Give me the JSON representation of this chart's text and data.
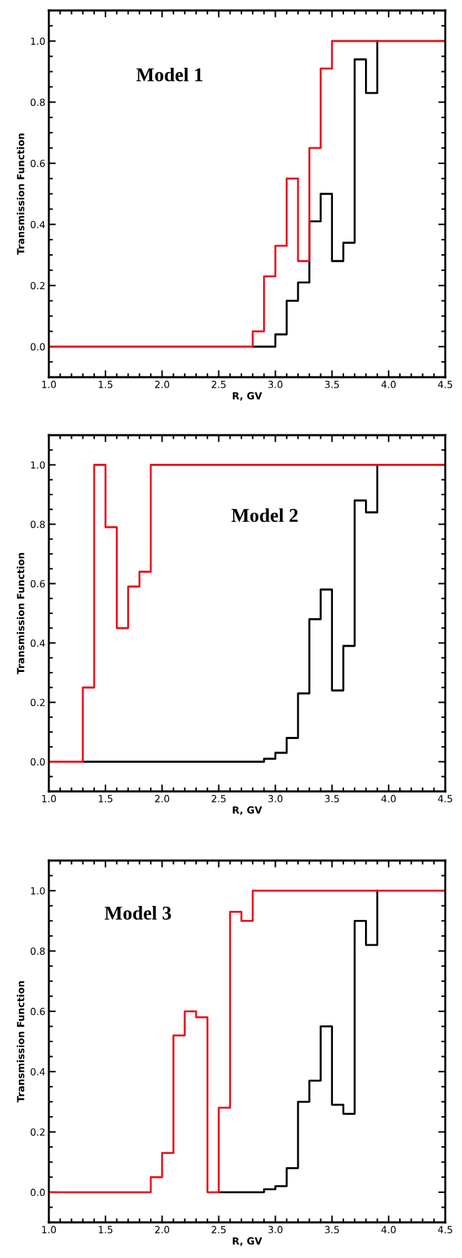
{
  "chart_data": [
    {
      "type": "step",
      "title": "Model 1",
      "xlabel": "R, GV",
      "ylabel": "Transmission Function",
      "xlim": [
        1.0,
        4.5
      ],
      "ylim": [
        -0.1,
        1.1
      ],
      "xticks": [
        {
          "value": 1.0,
          "label": "1.0"
        },
        {
          "value": 1.5,
          "label": "1.5"
        },
        {
          "value": 2.0,
          "label": "2.0"
        },
        {
          "value": 2.5,
          "label": "2.5"
        },
        {
          "value": 3.0,
          "label": "3.0"
        },
        {
          "value": 3.5,
          "label": "3.5"
        },
        {
          "value": 4.0,
          "label": "4.0"
        },
        {
          "value": 4.5,
          "label": "4.5"
        }
      ],
      "yticks": [
        {
          "value": 0.0,
          "label": "0.0"
        },
        {
          "value": 0.2,
          "label": "0.2"
        },
        {
          "value": 0.4,
          "label": "0.4"
        },
        {
          "value": 0.6,
          "label": "0.6"
        },
        {
          "value": 0.8,
          "label": "0.8"
        },
        {
          "value": 1.0,
          "label": "1.0"
        }
      ],
      "grid": false,
      "legend": false,
      "series": [
        {
          "color": "#000000",
          "x": [
            2.8,
            3.0,
            3.1,
            3.2,
            3.3,
            3.4,
            3.5,
            3.6,
            3.7,
            3.8,
            3.9
          ],
          "values": [
            0,
            0.04,
            0.15,
            0.21,
            0.41,
            0.5,
            0.28,
            0.34,
            0.94,
            0.83,
            1.0
          ]
        },
        {
          "color": "#e8141c",
          "x": [
            1.0,
            2.8,
            2.9,
            3.0,
            3.1,
            3.2,
            3.3,
            3.4,
            3.5,
            4.5
          ],
          "values": [
            0,
            0.05,
            0.23,
            0.33,
            0.55,
            0.28,
            0.65,
            0.91,
            1.0,
            1.0
          ]
        }
      ]
    },
    {
      "type": "step",
      "title": "Model 2",
      "xlabel": "R, GV",
      "ylabel": "Transmission Function",
      "xlim": [
        1.0,
        4.5
      ],
      "ylim": [
        -0.1,
        1.1
      ],
      "xticks": [
        {
          "value": 1.0,
          "label": "1.0"
        },
        {
          "value": 1.5,
          "label": "1.5"
        },
        {
          "value": 2.0,
          "label": "2.0"
        },
        {
          "value": 2.5,
          "label": "2.5"
        },
        {
          "value": 3.0,
          "label": "3.0"
        },
        {
          "value": 3.5,
          "label": "3.5"
        },
        {
          "value": 4.0,
          "label": "4.0"
        },
        {
          "value": 4.5,
          "label": "4.5"
        }
      ],
      "yticks": [
        {
          "value": 0.0,
          "label": "0.0"
        },
        {
          "value": 0.2,
          "label": "0.2"
        },
        {
          "value": 0.4,
          "label": "0.4"
        },
        {
          "value": 0.6,
          "label": "0.6"
        },
        {
          "value": 0.8,
          "label": "0.8"
        },
        {
          "value": 1.0,
          "label": "1.0"
        }
      ],
      "grid": false,
      "legend": false,
      "series": [
        {
          "color": "#000000",
          "x": [
            1.3,
            2.9,
            3.0,
            3.1,
            3.2,
            3.3,
            3.4,
            3.5,
            3.6,
            3.7,
            3.8,
            3.9
          ],
          "values": [
            0,
            0.01,
            0.03,
            0.08,
            0.23,
            0.48,
            0.58,
            0.24,
            0.39,
            0.88,
            0.84,
            1.0
          ]
        },
        {
          "color": "#e8141c",
          "x": [
            1.0,
            1.3,
            1.4,
            1.5,
            1.6,
            1.7,
            1.8,
            1.9,
            4.5
          ],
          "values": [
            0,
            0.25,
            1.0,
            0.79,
            0.45,
            0.59,
            0.64,
            1.0,
            1.0
          ]
        }
      ]
    },
    {
      "type": "step",
      "title": "Model 3",
      "xlabel": "R, GV",
      "ylabel": "Transmission Function",
      "xlim": [
        1.0,
        4.5
      ],
      "ylim": [
        -0.1,
        1.1
      ],
      "xticks": [
        {
          "value": 1.0,
          "label": "1.0"
        },
        {
          "value": 1.5,
          "label": "1.5"
        },
        {
          "value": 2.0,
          "label": "2.0"
        },
        {
          "value": 2.5,
          "label": "2.5"
        },
        {
          "value": 3.0,
          "label": "3.0"
        },
        {
          "value": 3.5,
          "label": "3.5"
        },
        {
          "value": 4.0,
          "label": "4.0"
        },
        {
          "value": 4.5,
          "label": "4.5"
        }
      ],
      "yticks": [
        {
          "value": 0.0,
          "label": "0.0"
        },
        {
          "value": 0.2,
          "label": "0.2"
        },
        {
          "value": 0.4,
          "label": "0.4"
        },
        {
          "value": 0.6,
          "label": "0.6"
        },
        {
          "value": 0.8,
          "label": "0.8"
        },
        {
          "value": 1.0,
          "label": "1.0"
        }
      ],
      "grid": false,
      "legend": false,
      "series": [
        {
          "color": "#000000",
          "x": [
            2.5,
            2.9,
            3.0,
            3.1,
            3.2,
            3.3,
            3.4,
            3.5,
            3.6,
            3.7,
            3.8,
            3.9
          ],
          "values": [
            0,
            0.01,
            0.02,
            0.08,
            0.3,
            0.37,
            0.55,
            0.29,
            0.26,
            0.9,
            0.82,
            1.0
          ]
        },
        {
          "color": "#e8141c",
          "x": [
            1.0,
            1.9,
            2.0,
            2.1,
            2.2,
            2.3,
            2.4,
            2.5,
            2.6,
            2.7,
            2.8,
            4.5
          ],
          "values": [
            0,
            0.05,
            0.13,
            0.52,
            0.6,
            0.58,
            0,
            0.28,
            0.93,
            0.9,
            1.0,
            1.0
          ]
        }
      ]
    }
  ]
}
